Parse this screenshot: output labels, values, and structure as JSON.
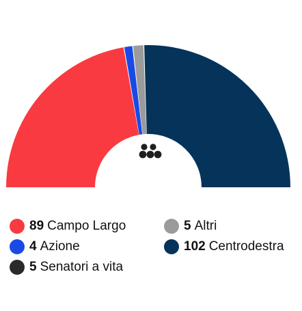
{
  "chart_data": {
    "type": "pie",
    "shape": "semicircle-donut",
    "center_icon": "senate-seats-icon",
    "series": [
      {
        "name": "Campo Largo",
        "value": 89,
        "color": "#f93a41"
      },
      {
        "name": "Azione",
        "value": 4,
        "color": "#1b49e6"
      },
      {
        "name": "Altri",
        "value": 5,
        "color": "#9b9b9b"
      },
      {
        "name": "Senatori a vita",
        "value": 5,
        "color": "#2a2a2a"
      },
      {
        "name": "Centrodestra",
        "value": 102,
        "color": "#05335a"
      }
    ],
    "arc_order": [
      "Campo Largo",
      "Azione",
      "Altri",
      "Centrodestra"
    ]
  },
  "legend": {
    "items": [
      {
        "count": "89",
        "label": "Campo Largo",
        "color": "#f93a41"
      },
      {
        "count": "5",
        "label": "Altri",
        "color": "#9b9b9b"
      },
      {
        "count": "4",
        "label": "Azione",
        "color": "#1b49e6"
      },
      {
        "count": "102",
        "label": "Centrodestra",
        "color": "#05335a"
      },
      {
        "count": "5",
        "label": "Senatori a vita",
        "color": "#2a2a2a"
      }
    ]
  }
}
